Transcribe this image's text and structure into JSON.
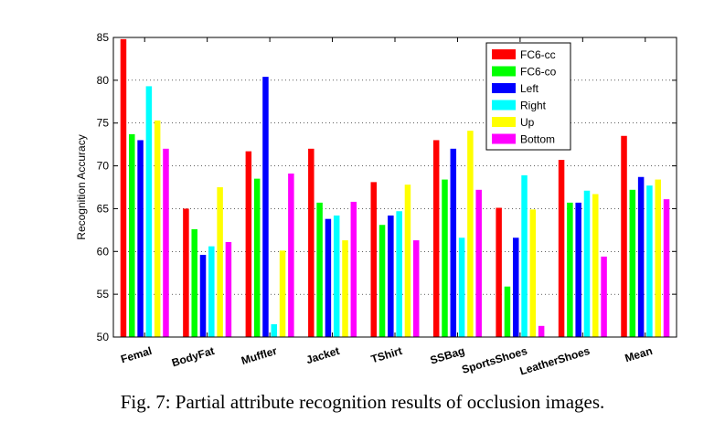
{
  "chart_data": {
    "type": "bar",
    "title": "",
    "xlabel": "",
    "ylabel": "Recognition Accuracy",
    "ylim": [
      50,
      85
    ],
    "yticks": [
      50,
      55,
      60,
      65,
      70,
      75,
      80,
      85
    ],
    "grid": true,
    "legend_position": "top-right",
    "categories": [
      "Femal",
      "BodyFat",
      "Muffler",
      "Jacket",
      "TShirt",
      "SSBag",
      "SportsShoes",
      "LeatherShoes",
      "Mean"
    ],
    "series": [
      {
        "name": "FC6-cc",
        "color": "#ff0000",
        "values": [
          84.8,
          65.0,
          71.7,
          72.0,
          68.1,
          73.0,
          65.1,
          70.7,
          73.5
        ]
      },
      {
        "name": "FC6-co",
        "color": "#00ff00",
        "values": [
          73.7,
          62.6,
          68.5,
          65.7,
          63.1,
          68.4,
          55.9,
          65.7,
          67.2
        ]
      },
      {
        "name": "Left",
        "color": "#0000ff",
        "values": [
          73.0,
          59.6,
          80.4,
          63.8,
          64.2,
          72.0,
          61.6,
          65.7,
          68.7
        ]
      },
      {
        "name": "Right",
        "color": "#00ffff",
        "values": [
          79.3,
          60.6,
          51.5,
          64.2,
          64.7,
          61.6,
          68.9,
          67.1,
          67.7
        ]
      },
      {
        "name": "Up",
        "color": "#ffff00",
        "values": [
          75.3,
          67.5,
          60.1,
          61.3,
          67.8,
          74.1,
          64.9,
          66.7,
          68.4
        ]
      },
      {
        "name": "Bottom",
        "color": "#ff00ff",
        "values": [
          72.0,
          61.1,
          69.1,
          65.8,
          61.3,
          67.2,
          51.3,
          59.4,
          66.1
        ]
      }
    ]
  },
  "caption": "Fig. 7: Partial attribute recognition results of occlusion images."
}
